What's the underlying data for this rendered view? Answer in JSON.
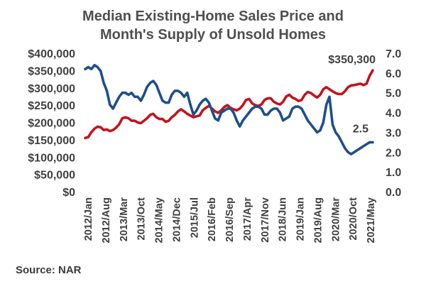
{
  "chart_data": {
    "type": "line",
    "title_line1": "Median Existing-Home Sales Price and",
    "title_line2": "Month's Supply of Unsold Homes",
    "source": "Source: NAR",
    "x_labels": [
      "2012/Jan",
      "2012/Aug",
      "2013/Mar",
      "2013/Oct",
      "2014/May",
      "2014/Dec",
      "2015/Jul",
      "2016/Feb",
      "2016/Sep",
      "2017/Apr",
      "2017/Nov",
      "2018/Jun",
      "2019/Jan",
      "2019/Aug",
      "2020/Mar",
      "2020/Oct",
      "2021/May"
    ],
    "left_axis": {
      "ylim": [
        0,
        400000
      ],
      "ticks": [
        0,
        50000,
        100000,
        150000,
        200000,
        250000,
        300000,
        350000,
        400000
      ],
      "tick_labels": [
        "$0",
        "$50,000",
        "$100,000",
        "$150,000",
        "$200,000",
        "$250,000",
        "$300,000",
        "$350,000",
        "$400,000"
      ]
    },
    "right_axis": {
      "ylim": [
        0,
        7
      ],
      "ticks": [
        0,
        1,
        2,
        3,
        4,
        5,
        6,
        7
      ],
      "tick_labels": [
        "0.0",
        "1.0",
        "2.0",
        "3.0",
        "4.0",
        "5.0",
        "6.0",
        "7.0"
      ]
    },
    "series": [
      {
        "name": "Median Existing-Home Sales Price",
        "axis": "left",
        "color": "#c0151e",
        "values": [
          155000,
          158000,
          172000,
          182000,
          188000,
          186000,
          178000,
          180000,
          175000,
          178000,
          185000,
          195000,
          212000,
          215000,
          212000,
          205000,
          205000,
          200000,
          198000,
          205000,
          212000,
          222000,
          225000,
          215000,
          210000,
          210000,
          202000,
          205000,
          215000,
          222000,
          232000,
          238000,
          232000,
          225000,
          220000,
          215000,
          218000,
          220000,
          235000,
          242000,
          248000,
          240000,
          232000,
          228000,
          235000,
          245000,
          250000,
          242000,
          238000,
          235000,
          240000,
          250000,
          265000,
          268000,
          255000,
          250000,
          248000,
          252000,
          265000,
          270000,
          270000,
          260000,
          255000,
          252000,
          260000,
          275000,
          280000,
          272000,
          268000,
          262000,
          265000,
          280000,
          288000,
          285000,
          278000,
          272000,
          280000,
          296000,
          302000,
          296000,
          290000,
          285000,
          282000,
          282000,
          290000,
          302000,
          307000,
          308000,
          310000,
          312000,
          308000,
          312000,
          335000,
          350300
        ]
      },
      {
        "name": "Month's Supply of Unsold Homes",
        "axis": "right",
        "color": "#1f4e8c",
        "values": [
          6.2,
          6.3,
          6.2,
          6.4,
          6.3,
          6.1,
          5.5,
          5.1,
          4.4,
          4.2,
          4.5,
          4.8,
          5.0,
          5.0,
          4.9,
          5.0,
          4.8,
          4.8,
          4.6,
          4.9,
          5.3,
          5.5,
          5.6,
          5.4,
          5.0,
          4.6,
          4.5,
          4.5,
          4.9,
          5.1,
          5.1,
          5.0,
          4.8,
          5.0,
          4.4,
          3.9,
          4.1,
          4.4,
          4.6,
          4.7,
          4.5,
          4.1,
          3.7,
          3.6,
          4.0,
          4.1,
          4.2,
          4.2,
          4.0,
          3.6,
          3.3,
          3.6,
          3.8,
          4.0,
          4.2,
          4.3,
          4.3,
          4.2,
          3.9,
          3.9,
          4.1,
          4.2,
          4.2,
          4.0,
          3.6,
          3.7,
          3.8,
          4.2,
          4.3,
          4.3,
          4.2,
          3.9,
          3.6,
          3.4,
          3.2,
          3.0,
          3.1,
          3.5,
          4.4,
          4.8,
          3.4,
          3.0,
          2.8,
          2.5,
          2.2,
          2.0,
          1.9,
          2.0,
          2.1,
          2.2,
          2.3,
          2.4,
          2.5,
          2.5
        ]
      }
    ],
    "annotations": [
      {
        "text": "$350,300",
        "series": 0,
        "point": "last"
      },
      {
        "text": "2.5",
        "series": 1,
        "point": "last"
      }
    ]
  }
}
